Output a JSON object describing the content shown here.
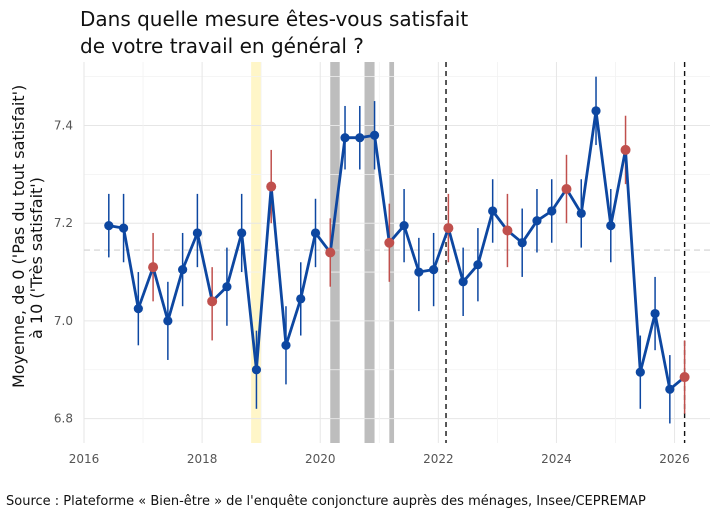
{
  "chart_data": {
    "type": "line",
    "title": [
      "Dans quelle mesure êtes-vous satisfait",
      "de votre travail en général ?"
    ],
    "ylabel": [
      "Moyenne, de 0 ('Pas du tout satisfait')",
      "à 10 ('Très satisfait')"
    ],
    "xlabel": "",
    "xlim": [
      2016,
      2026.6
    ],
    "ylim": [
      6.75,
      7.53
    ],
    "x_ticks": [
      2016,
      2018,
      2020,
      2022,
      2024,
      2026
    ],
    "x_tick_labels": [
      "2016",
      "2018",
      "2020",
      "2022",
      "2024",
      "2026"
    ],
    "y_ticks": [
      6.8,
      7.0,
      7.2,
      7.4
    ],
    "y_tick_labels": [
      "6.8",
      "7.0",
      "7.2",
      "7.4"
    ],
    "grid": true,
    "reference_line": 7.145,
    "highlight_band_yellow": [
      2018.83,
      2019.0
    ],
    "shaded_bands_grey": [
      [
        2020.17,
        2020.33
      ],
      [
        2020.75,
        2020.92
      ],
      [
        2021.17,
        2021.25
      ]
    ],
    "dashed_vertical_lines": [
      2022.13,
      2026.17
    ],
    "series": [
      {
        "color": "#0d47a1",
        "highlight_color": "#c0504d",
        "points": [
          {
            "x": 2016.42,
            "y": 7.195,
            "lo": 7.13,
            "hi": 7.26,
            "h": false
          },
          {
            "x": 2016.67,
            "y": 7.19,
            "lo": 7.12,
            "hi": 7.26,
            "h": false
          },
          {
            "x": 2016.92,
            "y": 7.025,
            "lo": 6.95,
            "hi": 7.1,
            "h": false
          },
          {
            "x": 2017.17,
            "y": 7.11,
            "lo": 7.04,
            "hi": 7.18,
            "h": true
          },
          {
            "x": 2017.42,
            "y": 7.0,
            "lo": 6.92,
            "hi": 7.08,
            "h": false
          },
          {
            "x": 2017.67,
            "y": 7.105,
            "lo": 7.03,
            "hi": 7.18,
            "h": false
          },
          {
            "x": 2017.92,
            "y": 7.18,
            "lo": 7.11,
            "hi": 7.26,
            "h": false
          },
          {
            "x": 2018.17,
            "y": 7.04,
            "lo": 6.96,
            "hi": 7.11,
            "h": true
          },
          {
            "x": 2018.42,
            "y": 7.07,
            "lo": 6.99,
            "hi": 7.15,
            "h": false
          },
          {
            "x": 2018.67,
            "y": 7.18,
            "lo": 7.1,
            "hi": 7.26,
            "h": false
          },
          {
            "x": 2018.92,
            "y": 6.9,
            "lo": 6.82,
            "hi": 6.98,
            "h": false
          },
          {
            "x": 2019.17,
            "y": 7.275,
            "lo": 7.2,
            "hi": 7.35,
            "h": true
          },
          {
            "x": 2019.42,
            "y": 6.95,
            "lo": 6.87,
            "hi": 7.03,
            "h": false
          },
          {
            "x": 2019.67,
            "y": 7.045,
            "lo": 6.97,
            "hi": 7.12,
            "h": false
          },
          {
            "x": 2019.92,
            "y": 7.18,
            "lo": 7.11,
            "hi": 7.25,
            "h": false
          },
          {
            "x": 2020.17,
            "y": 7.14,
            "lo": 7.07,
            "hi": 7.21,
            "h": true
          },
          {
            "x": 2020.42,
            "y": 7.375,
            "lo": 7.31,
            "hi": 7.44,
            "h": false
          },
          {
            "x": 2020.67,
            "y": 7.375,
            "lo": 7.31,
            "hi": 7.44,
            "h": false
          },
          {
            "x": 2020.92,
            "y": 7.38,
            "lo": 7.31,
            "hi": 7.45,
            "h": false
          },
          {
            "x": 2021.17,
            "y": 7.16,
            "lo": 7.08,
            "hi": 7.24,
            "h": true
          },
          {
            "x": 2021.42,
            "y": 7.195,
            "lo": 7.12,
            "hi": 7.27,
            "h": false
          },
          {
            "x": 2021.67,
            "y": 7.1,
            "lo": 7.02,
            "hi": 7.17,
            "h": false
          },
          {
            "x": 2021.92,
            "y": 7.105,
            "lo": 7.03,
            "hi": 7.18,
            "h": false
          },
          {
            "x": 2022.17,
            "y": 7.19,
            "lo": 7.12,
            "hi": 7.26,
            "h": true
          },
          {
            "x": 2022.42,
            "y": 7.08,
            "lo": 7.01,
            "hi": 7.15,
            "h": false
          },
          {
            "x": 2022.67,
            "y": 7.115,
            "lo": 7.04,
            "hi": 7.19,
            "h": false
          },
          {
            "x": 2022.92,
            "y": 7.225,
            "lo": 7.16,
            "hi": 7.29,
            "h": false
          },
          {
            "x": 2023.17,
            "y": 7.185,
            "lo": 7.11,
            "hi": 7.26,
            "h": true
          },
          {
            "x": 2023.42,
            "y": 7.16,
            "lo": 7.09,
            "hi": 7.23,
            "h": false
          },
          {
            "x": 2023.67,
            "y": 7.205,
            "lo": 7.14,
            "hi": 7.27,
            "h": false
          },
          {
            "x": 2023.92,
            "y": 7.225,
            "lo": 7.16,
            "hi": 7.29,
            "h": false
          },
          {
            "x": 2024.17,
            "y": 7.27,
            "lo": 7.2,
            "hi": 7.34,
            "h": true
          },
          {
            "x": 2024.42,
            "y": 7.22,
            "lo": 7.15,
            "hi": 7.29,
            "h": false
          },
          {
            "x": 2024.67,
            "y": 7.43,
            "lo": 7.36,
            "hi": 7.5,
            "h": false
          },
          {
            "x": 2024.92,
            "y": 7.195,
            "lo": 7.12,
            "hi": 7.27,
            "h": false
          },
          {
            "x": 2025.17,
            "y": 7.35,
            "lo": 7.28,
            "hi": 7.42,
            "h": true
          },
          {
            "x": 2025.42,
            "y": 6.895,
            "lo": 6.82,
            "hi": 6.97,
            "h": false
          },
          {
            "x": 2025.67,
            "y": 7.015,
            "lo": 6.94,
            "hi": 7.09,
            "h": false
          },
          {
            "x": 2025.92,
            "y": 6.86,
            "lo": 6.79,
            "hi": 6.93,
            "h": false
          },
          {
            "x": 2026.17,
            "y": 6.885,
            "lo": 6.81,
            "hi": 6.96,
            "h": true
          }
        ]
      }
    ]
  },
  "source": "Source : Plateforme « Bien-être » de l'enquête conjoncture auprès des ménages, Insee/CEPREMAP"
}
